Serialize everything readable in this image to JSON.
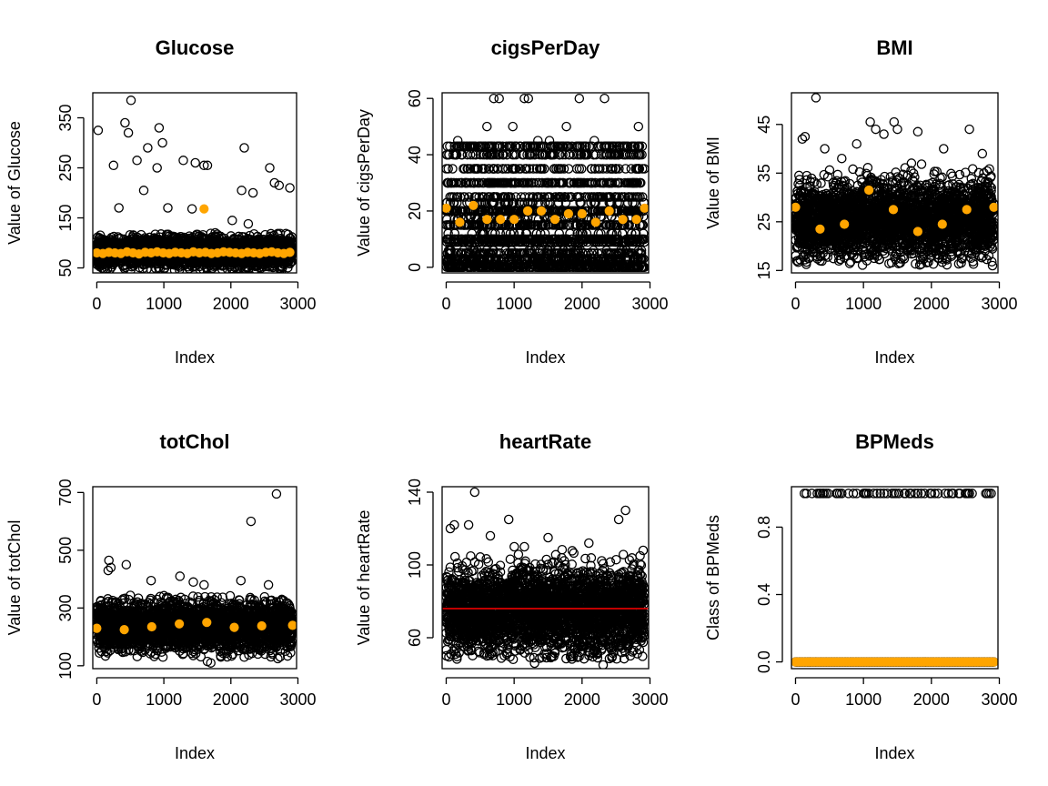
{
  "figure": {
    "layout": "2x3",
    "background": "#ffffff"
  },
  "chart_data": [
    {
      "type": "scatter",
      "title": "Glucose",
      "xlabel": "Index",
      "ylabel": "Value of Glucose",
      "xlim": [
        -60,
        2980
      ],
      "ylim": [
        40,
        400
      ],
      "xticks": [
        0,
        1000,
        2000,
        3000
      ],
      "xtick_labels": [
        "0",
        "1000",
        "2000",
        "3000"
      ],
      "yticks": [
        50,
        150,
        250,
        350
      ],
      "ytick_labels": [
        "50",
        "150",
        "250",
        "350"
      ],
      "grid": false,
      "legend": "none",
      "series": [
        {
          "kind": "points",
          "n": 2900,
          "x_range": [
            0,
            2920
          ],
          "y_typical": 82,
          "y_spread": 14,
          "y_min": 45,
          "y_max": 120,
          "color": "#000000",
          "marker": "open-circle",
          "outliers": [
            [
              20,
              325
            ],
            [
              250,
              255
            ],
            [
              330,
              170
            ],
            [
              420,
              340
            ],
            [
              470,
              320
            ],
            [
              510,
              385
            ],
            [
              600,
              265
            ],
            [
              700,
              205
            ],
            [
              760,
              290
            ],
            [
              900,
              250
            ],
            [
              930,
              330
            ],
            [
              980,
              300
            ],
            [
              1060,
              170
            ],
            [
              1290,
              265
            ],
            [
              1420,
              168
            ],
            [
              1470,
              260
            ],
            [
              1600,
              255
            ],
            [
              1650,
              255
            ],
            [
              2020,
              145
            ],
            [
              2160,
              205
            ],
            [
              2200,
              290
            ],
            [
              2260,
              138
            ],
            [
              2330,
              200
            ],
            [
              2580,
              250
            ],
            [
              2650,
              220
            ],
            [
              2720,
              215
            ],
            [
              2880,
              210
            ]
          ]
        },
        {
          "kind": "means",
          "color": "#FFA500",
          "marker": "filled-circle",
          "x": [
            0,
            90,
            180,
            270,
            360,
            450,
            540,
            630,
            720,
            810,
            900,
            990,
            1080,
            1170,
            1260,
            1350,
            1440,
            1530,
            1620,
            1710,
            1800,
            1890,
            1980,
            2070,
            2160,
            2250,
            2340,
            2430,
            2520,
            2610,
            2700,
            2790,
            2880
          ],
          "y": [
            80,
            79,
            81,
            80,
            79,
            82,
            80,
            78,
            81,
            80,
            82,
            80,
            79,
            81,
            80,
            79,
            82,
            80,
            81,
            79,
            80,
            82,
            81,
            80,
            79,
            81,
            80,
            79,
            81,
            82,
            80,
            79,
            81
          ],
          "highlight": [
            [
              1600,
              168
            ]
          ]
        }
      ]
    },
    {
      "type": "scatter",
      "title": "cigsPerDay",
      "xlabel": "Index",
      "ylabel": "Value of cigsPerDay",
      "xlim": [
        -60,
        2980
      ],
      "ylim": [
        -2,
        62
      ],
      "xticks": [
        0,
        1000,
        2000,
        3000
      ],
      "xtick_labels": [
        "0",
        "1000",
        "2000",
        "3000"
      ],
      "yticks": [
        0,
        20,
        40,
        60
      ],
      "ytick_labels": [
        "0",
        "20",
        "40",
        "60"
      ],
      "grid": false,
      "legend": "none",
      "series": [
        {
          "kind": "discrete-rows",
          "x_range": [
            0,
            2920
          ],
          "color": "#000000",
          "marker": "open-circle",
          "levels": [
            0,
            1,
            2,
            3,
            5,
            6,
            9,
            10,
            12,
            15,
            17,
            18,
            20,
            23,
            25,
            30,
            35,
            40,
            43
          ],
          "density": [
            1.0,
            0.35,
            0.3,
            0.55,
            0.5,
            0.15,
            0.6,
            0.8,
            0.15,
            0.75,
            0.15,
            0.15,
            1.0,
            0.25,
            0.45,
            0.7,
            0.35,
            0.5,
            0.55
          ],
          "outliers": [
            [
              170,
              45
            ],
            [
              600,
              50
            ],
            [
              700,
              60
            ],
            [
              780,
              60
            ],
            [
              980,
              50
            ],
            [
              1150,
              60
            ],
            [
              1210,
              60
            ],
            [
              1350,
              45
            ],
            [
              1520,
              45
            ],
            [
              1770,
              50
            ],
            [
              1960,
              60
            ],
            [
              2180,
              45
            ],
            [
              2330,
              60
            ],
            [
              2830,
              50
            ]
          ]
        },
        {
          "kind": "means",
          "color": "#FFA500",
          "marker": "filled-circle",
          "x": [
            0,
            200,
            400,
            600,
            800,
            1000,
            1200,
            1400,
            1600,
            1800,
            2000,
            2200,
            2400,
            2600,
            2800,
            2920
          ],
          "y": [
            21,
            16,
            22,
            17,
            17,
            17,
            20,
            20,
            17,
            19,
            19,
            16,
            20,
            17,
            17,
            21
          ]
        }
      ]
    },
    {
      "type": "scatter",
      "title": "BMI",
      "xlabel": "Index",
      "ylabel": "Value of BMI",
      "xlim": [
        -60,
        2980
      ],
      "ylim": [
        14.5,
        51.5
      ],
      "xticks": [
        0,
        1000,
        2000,
        3000
      ],
      "xtick_labels": [
        "0",
        "1000",
        "2000",
        "3000"
      ],
      "yticks": [
        15,
        25,
        35,
        45
      ],
      "ytick_labels": [
        "15",
        "25",
        "35",
        "45"
      ],
      "grid": false,
      "legend": "none",
      "series": [
        {
          "kind": "points",
          "n": 2900,
          "x_range": [
            0,
            2920
          ],
          "y_typical": 25.5,
          "y_spread": 3.8,
          "y_min": 16,
          "y_max": 38,
          "color": "#000000",
          "marker": "open-circle",
          "outliers": [
            [
              100,
              42
            ],
            [
              140,
              42.5
            ],
            [
              300,
              50.5
            ],
            [
              430,
              40
            ],
            [
              680,
              38
            ],
            [
              900,
              41
            ],
            [
              1100,
              45.5
            ],
            [
              1180,
              44
            ],
            [
              1300,
              43
            ],
            [
              1450,
              45.5
            ],
            [
              1500,
              44
            ],
            [
              1800,
              43.5
            ],
            [
              2180,
              40
            ],
            [
              2560,
              44
            ],
            [
              2900,
              16
            ],
            [
              2750,
              39
            ],
            [
              360,
              17
            ],
            [
              1050,
              17
            ]
          ]
        },
        {
          "kind": "means",
          "color": "#FFA500",
          "marker": "filled-circle",
          "x": [
            0,
            360,
            720,
            1080,
            1440,
            1800,
            2160,
            2520,
            2920
          ],
          "y": [
            28,
            23.5,
            24.5,
            31.5,
            27.5,
            23,
            24.5,
            27.5,
            28
          ]
        }
      ]
    },
    {
      "type": "scatter",
      "title": "totChol",
      "xlabel": "Index",
      "ylabel": "Value of totChol",
      "xlim": [
        -60,
        2980
      ],
      "ylim": [
        90,
        720
      ],
      "xticks": [
        0,
        1000,
        2000,
        3000
      ],
      "xtick_labels": [
        "0",
        "1000",
        "2000",
        "3000"
      ],
      "yticks": [
        100,
        300,
        500,
        700
      ],
      "ytick_labels": [
        "100",
        "300",
        "500",
        "700"
      ],
      "grid": false,
      "legend": "none",
      "series": [
        {
          "kind": "points",
          "n": 2900,
          "x_range": [
            0,
            2920
          ],
          "y_typical": 237,
          "y_spread": 40,
          "y_min": 130,
          "y_max": 345,
          "color": "#000000",
          "marker": "open-circle",
          "outliers": [
            [
              180,
              465
            ],
            [
              210,
              440
            ],
            [
              170,
              430
            ],
            [
              440,
              450
            ],
            [
              810,
              395
            ],
            [
              1240,
              410
            ],
            [
              1440,
              390
            ],
            [
              1600,
              380
            ],
            [
              2150,
              395
            ],
            [
              2300,
              600
            ],
            [
              2560,
              380
            ],
            [
              2680,
              695
            ],
            [
              1650,
              115
            ],
            [
              1700,
              110
            ],
            [
              2200,
              130
            ],
            [
              2700,
              125
            ]
          ]
        },
        {
          "kind": "means",
          "color": "#FFA500",
          "marker": "filled-circle",
          "x": [
            0,
            410,
            820,
            1230,
            1640,
            2050,
            2460,
            2920
          ],
          "y": [
            230,
            225,
            235,
            245,
            250,
            233,
            238,
            240
          ]
        }
      ]
    },
    {
      "type": "scatter",
      "title": "heartRate",
      "xlabel": "Index",
      "ylabel": "Value of heartRate",
      "xlim": [
        -60,
        2980
      ],
      "ylim": [
        43,
        143
      ],
      "xticks": [
        0,
        1000,
        2000,
        3000
      ],
      "xtick_labels": [
        "0",
        "1000",
        "2000",
        "3000"
      ],
      "yticks": [
        60,
        100,
        140
      ],
      "ytick_labels": [
        "60",
        "100",
        "140"
      ],
      "grid": false,
      "legend": "none",
      "series": [
        {
          "kind": "points",
          "n": 3000,
          "x_range": [
            0,
            2920
          ],
          "y_typical": 75,
          "y_spread": 11,
          "y_min": 48,
          "y_max": 112,
          "color": "#000000",
          "marker": "open-circle",
          "outliers": [
            [
              60,
              120
            ],
            [
              120,
              122
            ],
            [
              330,
              122
            ],
            [
              420,
              140
            ],
            [
              650,
              116
            ],
            [
              920,
              125
            ],
            [
              1150,
              110
            ],
            [
              1500,
              115
            ],
            [
              2100,
              112
            ],
            [
              2540,
              125
            ],
            [
              2640,
              130
            ],
            [
              2900,
              108
            ],
            [
              1300,
              46
            ],
            [
              2310,
              45
            ],
            [
              1560,
              50
            ]
          ]
        },
        {
          "kind": "mean-line",
          "y": 76,
          "color": "#FF0000"
        }
      ]
    },
    {
      "type": "scatter",
      "title": "BPMeds",
      "xlabel": "Index",
      "ylabel": "Class of BPMeds",
      "xlim": [
        -60,
        2980
      ],
      "ylim": [
        -0.04,
        1.04
      ],
      "xticks": [
        0,
        1000,
        2000,
        3000
      ],
      "xtick_labels": [
        "0",
        "1000",
        "2000",
        "3000"
      ],
      "yticks": [
        0,
        0.4,
        0.8
      ],
      "ytick_labels": [
        "0.0",
        "0.4",
        "0.8"
      ],
      "grid": false,
      "legend": "none",
      "series": [
        {
          "kind": "class-points",
          "y": 1,
          "color": "#000000",
          "marker": "open-circle",
          "x": [
            130,
            160,
            240,
            320,
            350,
            370,
            400,
            420,
            450,
            480,
            600,
            620,
            650,
            680,
            780,
            850,
            900,
            1000,
            1020,
            1030,
            1050,
            1080,
            1150,
            1200,
            1250,
            1300,
            1350,
            1420,
            1450,
            1480,
            1520,
            1600,
            1620,
            1680,
            1700,
            1760,
            1800,
            1850,
            1900,
            1980,
            2000,
            2050,
            2100,
            2200,
            2250,
            2300,
            2320,
            2400,
            2420,
            2500,
            2520,
            2540,
            2560,
            2600,
            2800,
            2820,
            2850,
            2880
          ]
        },
        {
          "kind": "class-points",
          "y": 0,
          "color": "#000000",
          "marker": "open-circle",
          "x_range": [
            0,
            2920
          ],
          "n": 180
        },
        {
          "kind": "means",
          "color": "#FFA500",
          "marker": "filled-circle",
          "x_range": [
            0,
            2920
          ],
          "n": 75,
          "y_const": 0
        }
      ]
    }
  ]
}
